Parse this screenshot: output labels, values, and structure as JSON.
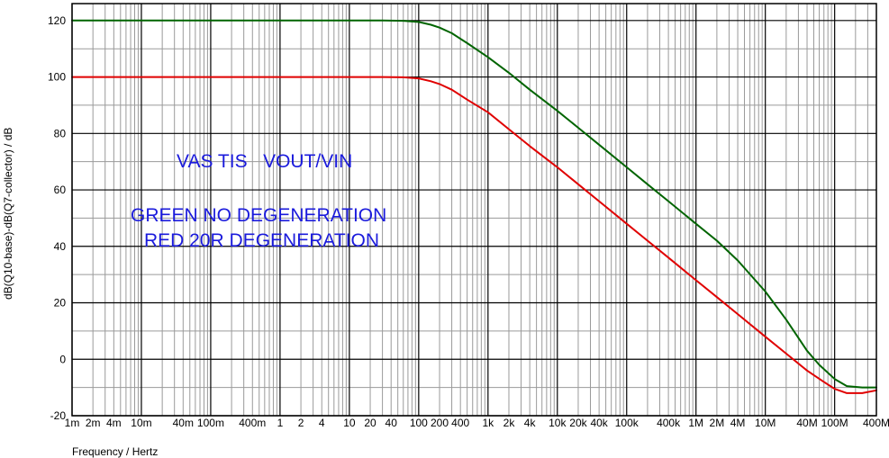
{
  "chart_data": {
    "type": "line",
    "xscale": "log",
    "xlim": [
      0.001,
      400000000
    ],
    "ylim": [
      -20,
      126
    ],
    "xlabel": "Frequency / Hertz",
    "ylabel": "dB(Q10-base)-dB(Q7-collector) / dB",
    "grid": true,
    "x_ticks": [
      {
        "v": 0.001,
        "t": "1m"
      },
      {
        "v": 0.002,
        "t": "2m"
      },
      {
        "v": 0.004,
        "t": "4m"
      },
      {
        "v": 0.01,
        "t": "10m"
      },
      {
        "v": 0.04,
        "t": "40m"
      },
      {
        "v": 0.1,
        "t": "100m"
      },
      {
        "v": 0.4,
        "t": "400m"
      },
      {
        "v": 1,
        "t": "1"
      },
      {
        "v": 2,
        "t": "2"
      },
      {
        "v": 4,
        "t": "4"
      },
      {
        "v": 10,
        "t": "10"
      },
      {
        "v": 20,
        "t": "20"
      },
      {
        "v": 40,
        "t": "40"
      },
      {
        "v": 100,
        "t": "100"
      },
      {
        "v": 200,
        "t": "200"
      },
      {
        "v": 400,
        "t": "400"
      },
      {
        "v": 1000,
        "t": "1k"
      },
      {
        "v": 2000,
        "t": "2k"
      },
      {
        "v": 4000,
        "t": "4k"
      },
      {
        "v": 10000,
        "t": "10k"
      },
      {
        "v": 20000,
        "t": "20k"
      },
      {
        "v": 40000,
        "t": "40k"
      },
      {
        "v": 100000,
        "t": "100k"
      },
      {
        "v": 400000,
        "t": "400k"
      },
      {
        "v": 1000000,
        "t": "1M"
      },
      {
        "v": 2000000,
        "t": "2M"
      },
      {
        "v": 4000000,
        "t": "4M"
      },
      {
        "v": 10000000,
        "t": "10M"
      },
      {
        "v": 40000000,
        "t": "40M"
      },
      {
        "v": 100000000,
        "t": "100M"
      },
      {
        "v": 400000000,
        "t": "400M"
      }
    ],
    "y_ticks": [
      {
        "v": 120,
        "t": "120"
      },
      {
        "v": 100,
        "t": "100"
      },
      {
        "v": 80,
        "t": "80"
      },
      {
        "v": 60,
        "t": "60"
      },
      {
        "v": 40,
        "t": "40"
      },
      {
        "v": 20,
        "t": "20"
      },
      {
        "v": 0,
        "t": "0"
      },
      {
        "v": -20,
        "t": "-20"
      }
    ],
    "series": [
      {
        "color": "#006400",
        "points": [
          [
            0.001,
            120
          ],
          [
            30,
            120
          ],
          [
            60,
            119.9
          ],
          [
            100,
            119.5
          ],
          [
            150,
            118.5
          ],
          [
            200,
            117.5
          ],
          [
            300,
            115.5
          ],
          [
            500,
            112
          ],
          [
            1000,
            107
          ],
          [
            2000,
            101.5
          ],
          [
            4000,
            95.5
          ],
          [
            10000,
            88
          ],
          [
            20000,
            82
          ],
          [
            40000,
            76
          ],
          [
            100000,
            68
          ],
          [
            200000,
            62
          ],
          [
            400000,
            56
          ],
          [
            1000000,
            48
          ],
          [
            2000000,
            42
          ],
          [
            4000000,
            35
          ],
          [
            10000000,
            24
          ],
          [
            20000000,
            14
          ],
          [
            40000000,
            3
          ],
          [
            60000000,
            -2
          ],
          [
            100000000,
            -7
          ],
          [
            150000000,
            -9.5
          ],
          [
            250000000,
            -10
          ],
          [
            400000000,
            -10
          ]
        ]
      },
      {
        "color": "#e00000",
        "points": [
          [
            0.001,
            100
          ],
          [
            30,
            100
          ],
          [
            60,
            99.9
          ],
          [
            100,
            99.5
          ],
          [
            150,
            98.5
          ],
          [
            200,
            97.5
          ],
          [
            300,
            95.5
          ],
          [
            500,
            92
          ],
          [
            1000,
            87.5
          ],
          [
            2000,
            81.5
          ],
          [
            4000,
            75.5
          ],
          [
            10000,
            68
          ],
          [
            20000,
            62
          ],
          [
            40000,
            56
          ],
          [
            100000,
            48
          ],
          [
            200000,
            42
          ],
          [
            400000,
            36
          ],
          [
            1000000,
            28
          ],
          [
            2000000,
            22
          ],
          [
            4000000,
            16
          ],
          [
            10000000,
            8
          ],
          [
            20000000,
            2
          ],
          [
            40000000,
            -4
          ],
          [
            70000000,
            -8
          ],
          [
            100000000,
            -10.5
          ],
          [
            150000000,
            -12
          ],
          [
            250000000,
            -12
          ],
          [
            400000000,
            -11
          ]
        ]
      }
    ],
    "annotations": [
      "VAS TIS   VOUT/VIN",
      "GREEN NO DEGENERATION",
      "RED 20R DEGENERATION"
    ]
  }
}
